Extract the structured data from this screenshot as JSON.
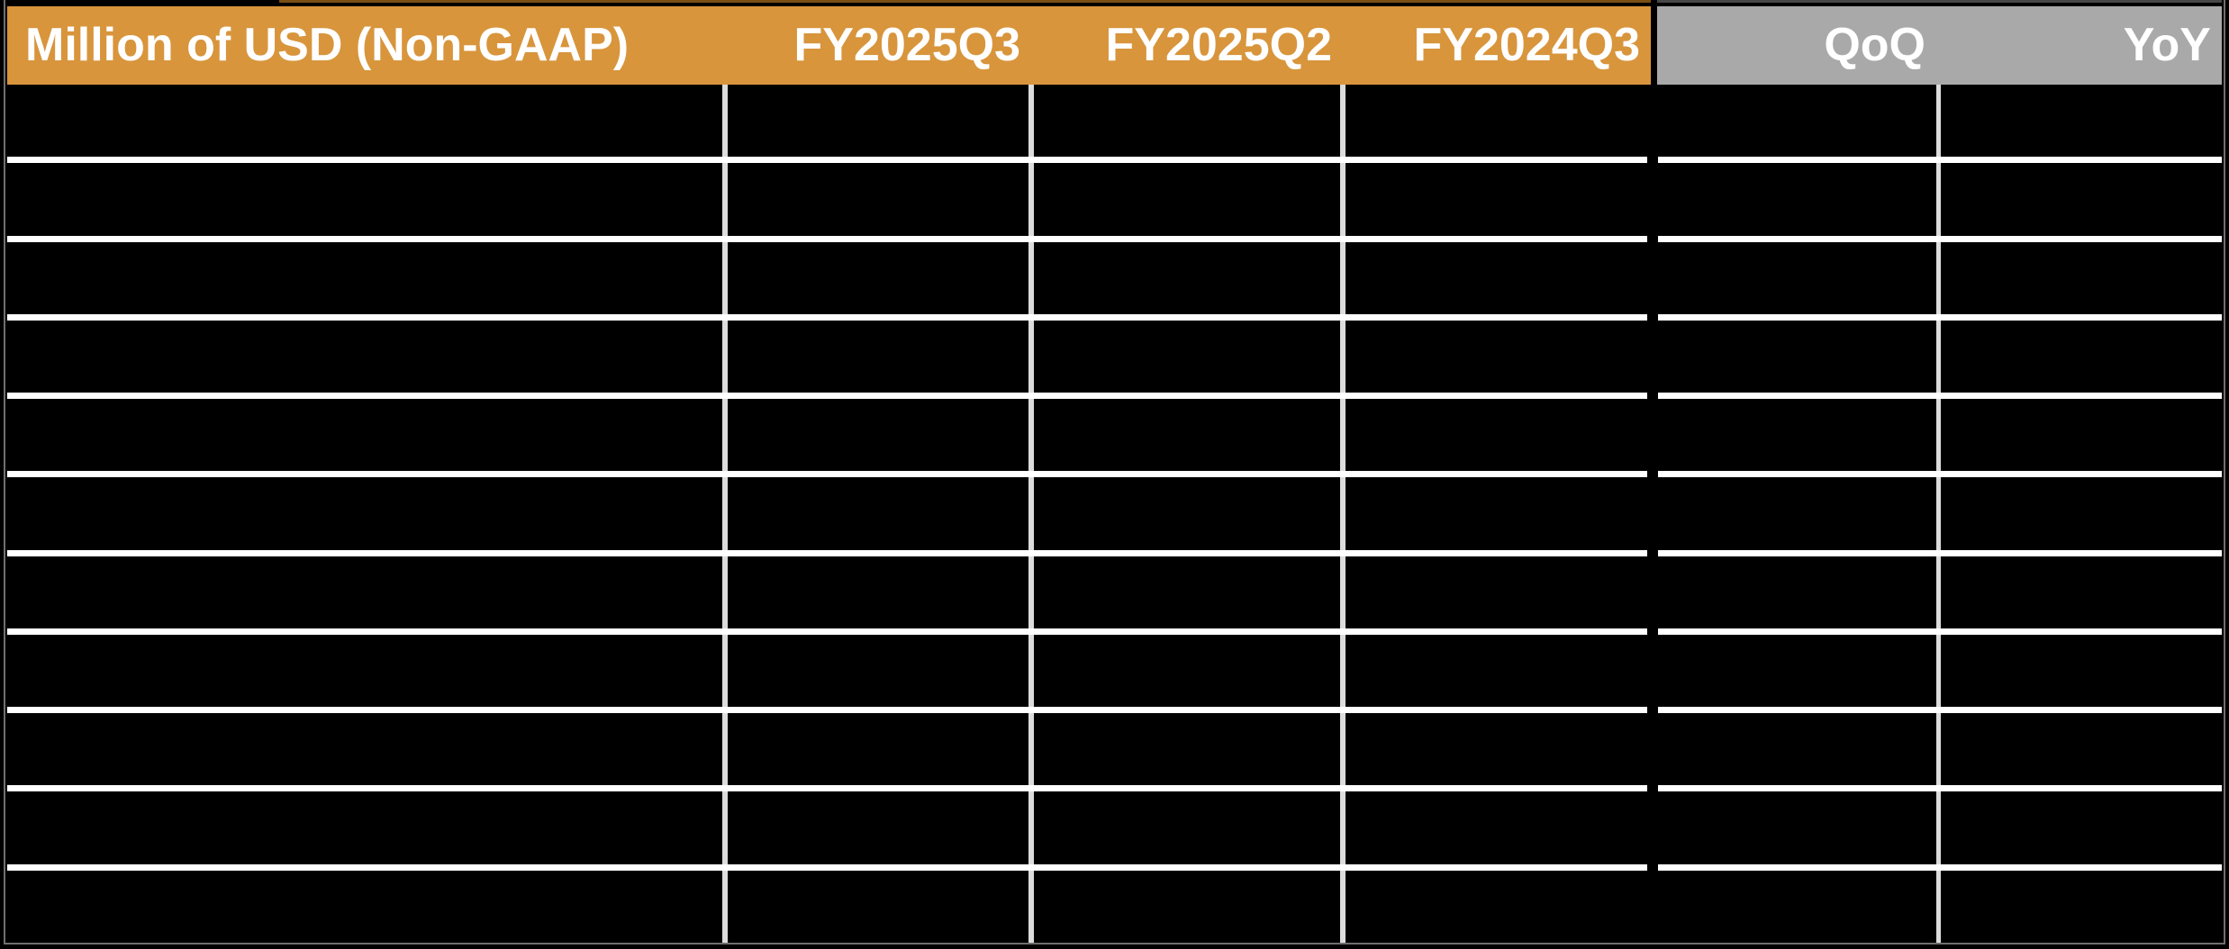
{
  "table": {
    "header": {
      "cells": [
        {
          "label": "Million of USD (Non-GAAP)",
          "group": "orange"
        },
        {
          "label": "FY2025Q3",
          "group": "orange"
        },
        {
          "label": "FY2025Q2",
          "group": "orange"
        },
        {
          "label": "FY2024Q3",
          "group": "orange"
        },
        {
          "label": "QoQ",
          "group": "gray"
        },
        {
          "label": "YoY",
          "group": "gray"
        }
      ]
    },
    "row_count": 11
  },
  "chart_data": {
    "type": "table",
    "title": "Million of USD (Non-GAAP)",
    "columns": [
      "Million of USD (Non-GAAP)",
      "FY2025Q3",
      "FY2025Q2",
      "FY2024Q3",
      "QoQ",
      "YoY"
    ],
    "rows": [
      [
        "",
        "",
        "",
        "",
        "",
        ""
      ],
      [
        "",
        "",
        "",
        "",
        "",
        ""
      ],
      [
        "",
        "",
        "",
        "",
        "",
        ""
      ],
      [
        "",
        "",
        "",
        "",
        "",
        ""
      ],
      [
        "",
        "",
        "",
        "",
        "",
        ""
      ],
      [
        "",
        "",
        "",
        "",
        "",
        ""
      ],
      [
        "",
        "",
        "",
        "",
        "",
        ""
      ],
      [
        "",
        "",
        "",
        "",
        "",
        ""
      ],
      [
        "",
        "",
        "",
        "",
        "",
        ""
      ],
      [
        "",
        "",
        "",
        "",
        "",
        ""
      ],
      [
        "",
        "",
        "",
        "",
        "",
        ""
      ]
    ],
    "layout": {
      "grid": "on",
      "header_groups": [
        {
          "columns": [
            "Million of USD (Non-GAAP)",
            "FY2025Q3",
            "FY2025Q2",
            "FY2024Q3"
          ],
          "color": "#d8953c"
        },
        {
          "columns": [
            "QoQ",
            "YoY"
          ],
          "color": "#a9a9a9"
        }
      ]
    }
  },
  "colors": {
    "header_orange": "#d8953c",
    "header_gray": "#a9a9a9",
    "header_text": "#ffffff",
    "body_background": "#000000",
    "horizontal_gridline": "#ffffff",
    "vertical_gridline": "#dcdcdc",
    "outer_frame": "#6f6f6f"
  }
}
